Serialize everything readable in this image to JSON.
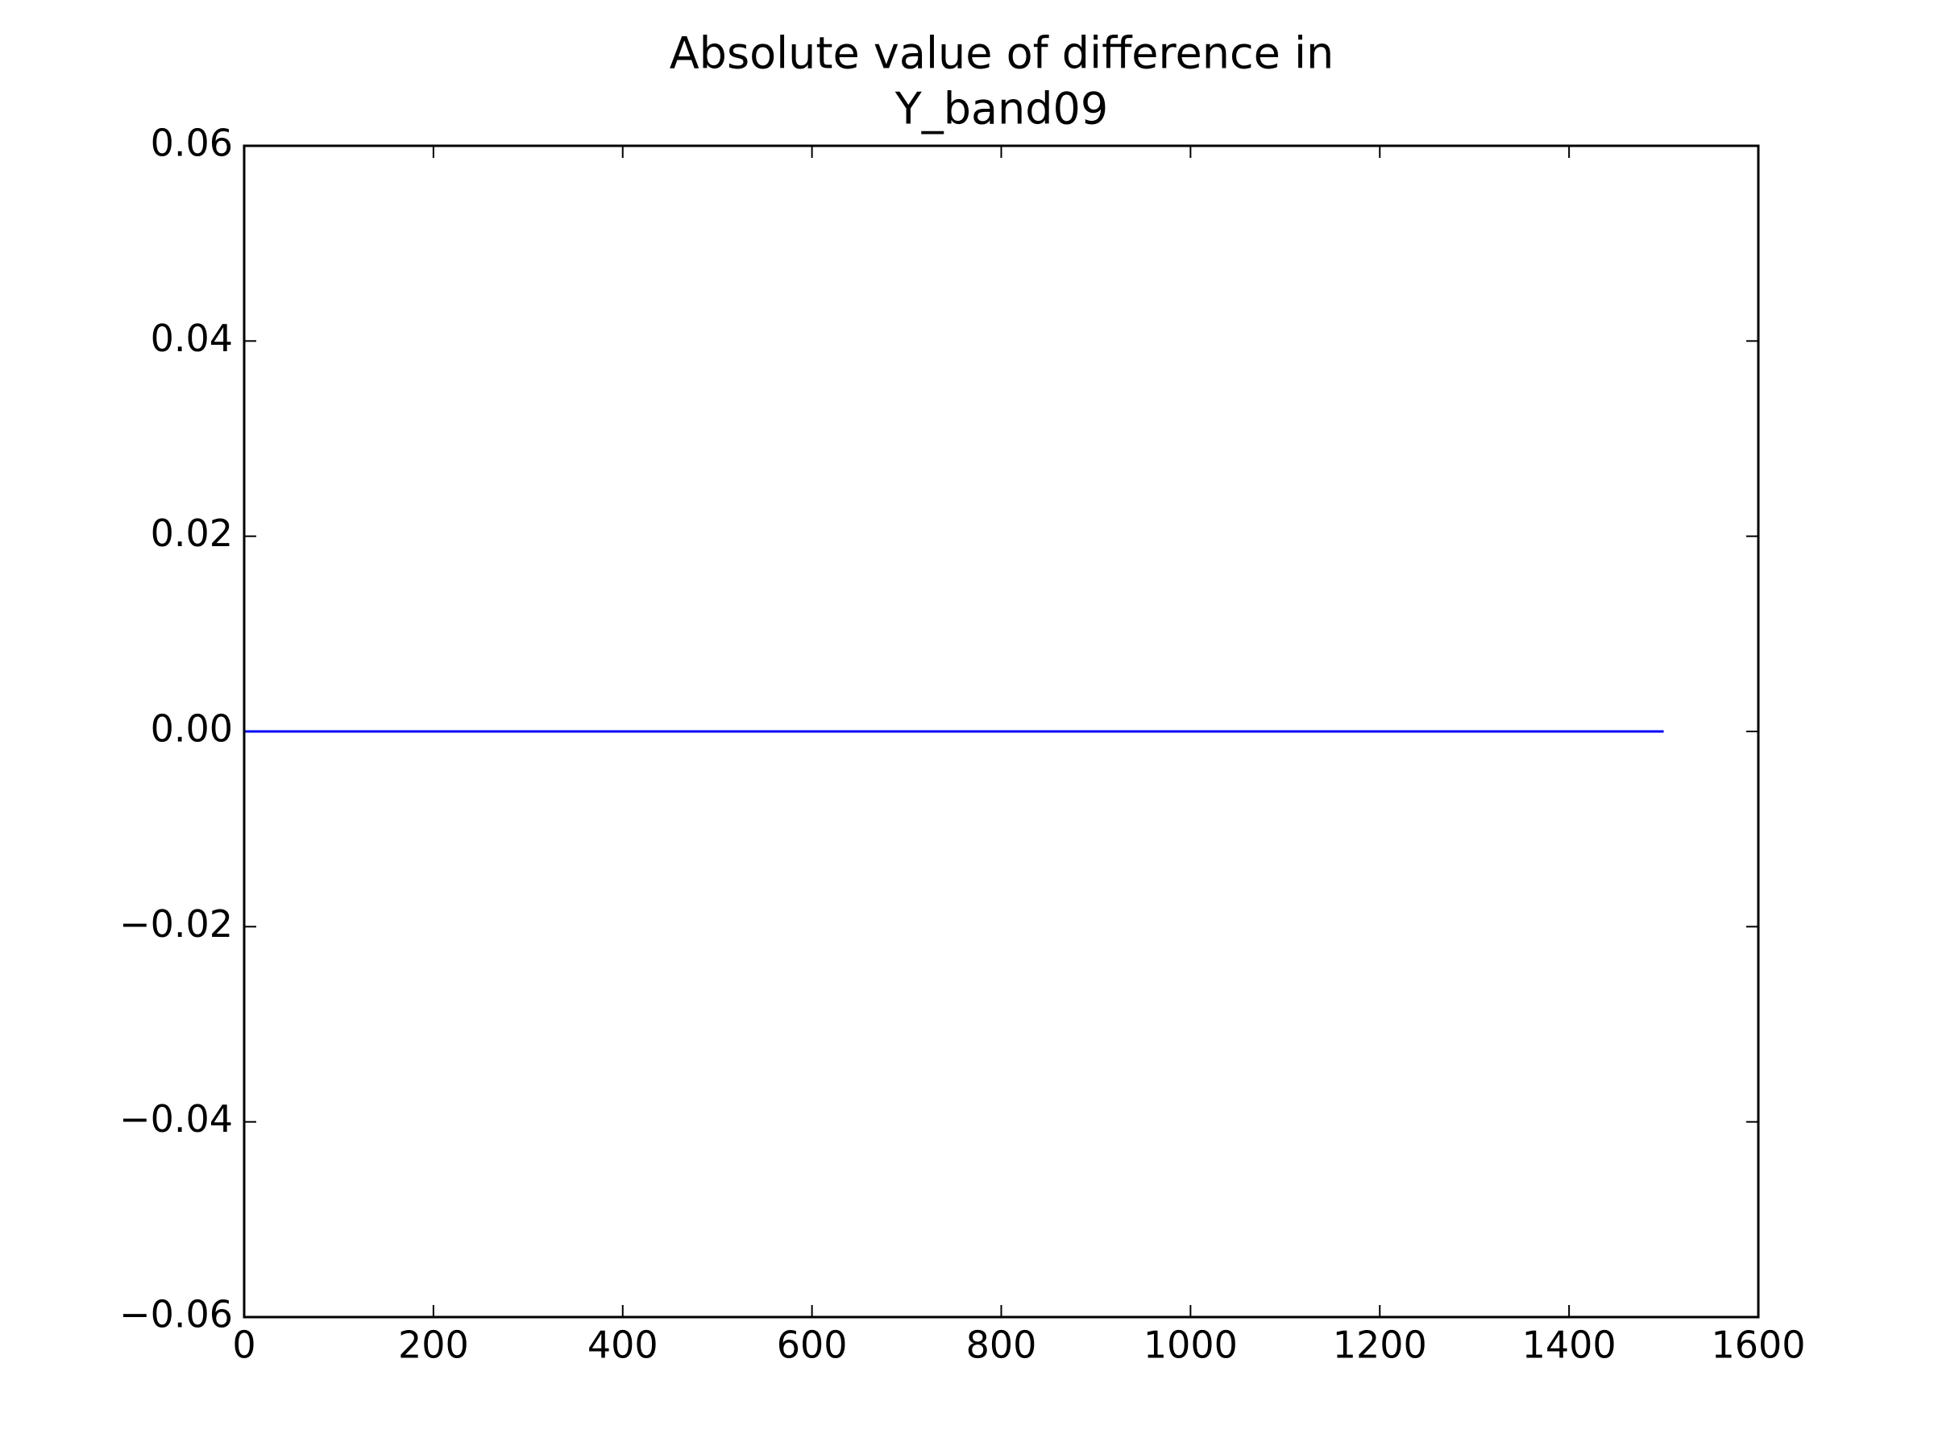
{
  "chart_data": {
    "type": "line",
    "title": [
      "Absolute value of difference in",
      "Y_band09"
    ],
    "x": [
      0,
      1500
    ],
    "series": [
      {
        "color": "#0000ff",
        "values": [
          0,
          0
        ]
      }
    ],
    "xlim": [
      0,
      1600
    ],
    "xticks": [
      0,
      200,
      400,
      600,
      800,
      1000,
      1200,
      1400,
      1600
    ],
    "ylim": [
      -0.06,
      0.06
    ],
    "yticks": [
      {
        "value": -0.06,
        "label": "−0.06"
      },
      {
        "value": -0.04,
        "label": "−0.04"
      },
      {
        "value": -0.02,
        "label": "−0.02"
      },
      {
        "value": 0,
        "label": "0.00"
      },
      0.02,
      0.04,
      0.06
    ],
    "grid": false
  }
}
